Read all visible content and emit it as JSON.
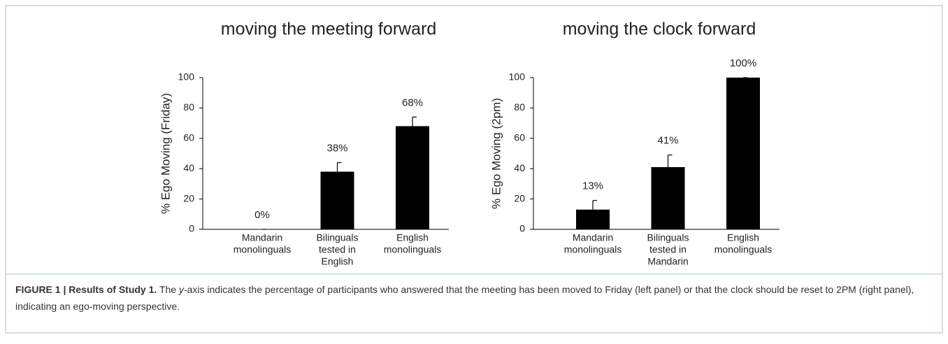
{
  "chart_data": [
    {
      "type": "bar",
      "title": "moving the meeting forward",
      "ylabel": "% Ego Moving (Friday)",
      "categories": [
        [
          "Mandarin",
          "monolinguals"
        ],
        [
          "Bilinguals",
          "tested in",
          "English"
        ],
        [
          "English",
          "monolinguals"
        ]
      ],
      "values": [
        0,
        38,
        68
      ],
      "value_labels": [
        "0%",
        "38%",
        "68%"
      ],
      "errors": [
        0,
        6,
        6
      ],
      "color": "#000000",
      "ylim": [
        0,
        100
      ],
      "yticks": [
        0,
        20,
        40,
        60,
        80,
        100
      ]
    },
    {
      "type": "bar",
      "title": "moving the clock forward",
      "ylabel": "% Ego Moving (2pm)",
      "categories": [
        [
          "Mandarin",
          "monolinguals"
        ],
        [
          "Bilinguals",
          "tested in",
          "Mandarin"
        ],
        [
          "English",
          "monolinguals"
        ]
      ],
      "values": [
        13,
        41,
        100
      ],
      "value_labels": [
        "13%",
        "41%",
        "100%"
      ],
      "errors": [
        6,
        8,
        0
      ],
      "color": "#000000",
      "ylim": [
        0,
        100
      ],
      "yticks": [
        0,
        20,
        40,
        60,
        80,
        100
      ]
    }
  ],
  "caption": {
    "label": "FIGURE 1 | Results of Study 1.",
    "text_before": "The",
    "italic": "y",
    "text_after": "-axis indicates the percentage of participants who answered that the meeting has been moved to Friday (left panel) or that the clock should be reset to 2PM (right panel), indicating an ego-moving perspective."
  }
}
